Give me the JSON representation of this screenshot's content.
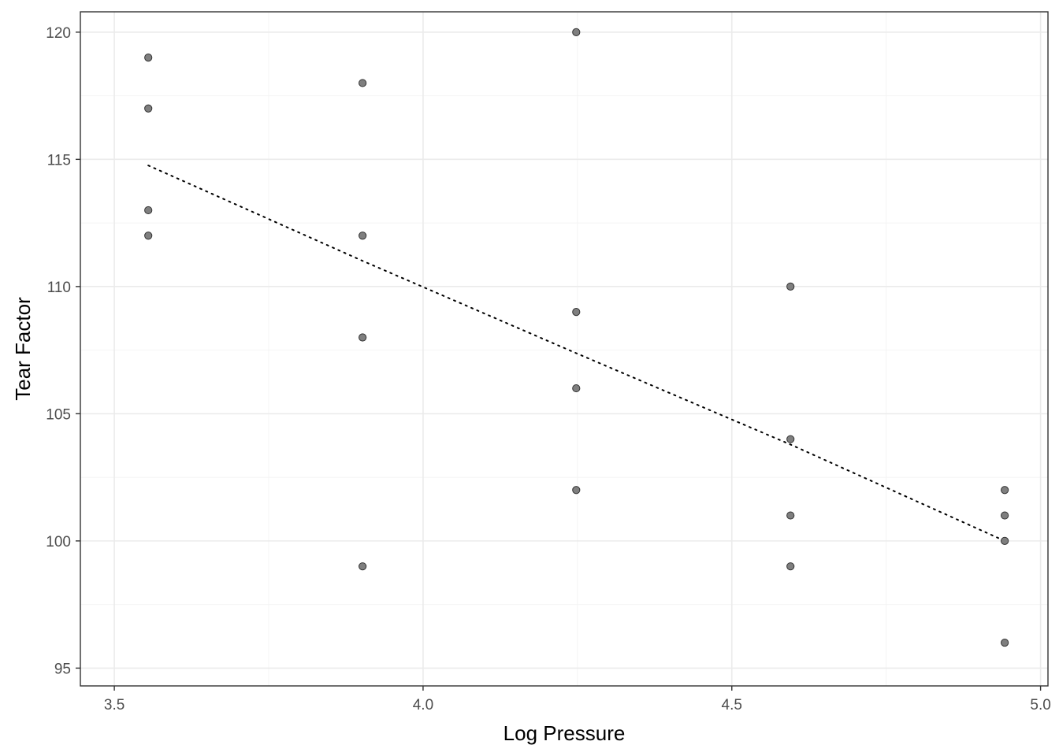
{
  "chart_data": {
    "type": "scatter",
    "title": "",
    "xlabel": "Log Pressure",
    "ylabel": "Tear Factor",
    "xlim": [
      3.445,
      5.012
    ],
    "ylim": [
      94.3,
      120.8
    ],
    "x_ticks": [
      3.5,
      4.0,
      4.5,
      5.0
    ],
    "x_tick_labels": [
      "3.5",
      "4.0",
      "4.5",
      "5.0"
    ],
    "y_ticks": [
      95,
      100,
      105,
      110,
      115,
      120
    ],
    "y_tick_labels": [
      "95",
      "100",
      "105",
      "110",
      "115",
      "120"
    ],
    "grid": true,
    "legend": "none",
    "points": [
      {
        "x": 3.555,
        "y": 119
      },
      {
        "x": 3.555,
        "y": 117
      },
      {
        "x": 3.555,
        "y": 113
      },
      {
        "x": 3.555,
        "y": 112
      },
      {
        "x": 3.902,
        "y": 118
      },
      {
        "x": 3.902,
        "y": 112
      },
      {
        "x": 3.902,
        "y": 108
      },
      {
        "x": 3.902,
        "y": 99
      },
      {
        "x": 4.248,
        "y": 120
      },
      {
        "x": 4.248,
        "y": 109
      },
      {
        "x": 4.248,
        "y": 106
      },
      {
        "x": 4.248,
        "y": 102
      },
      {
        "x": 4.595,
        "y": 110
      },
      {
        "x": 4.595,
        "y": 104
      },
      {
        "x": 4.595,
        "y": 101
      },
      {
        "x": 4.595,
        "y": 99
      },
      {
        "x": 4.942,
        "y": 102
      },
      {
        "x": 4.942,
        "y": 101
      },
      {
        "x": 4.942,
        "y": 100
      },
      {
        "x": 4.942,
        "y": 96
      }
    ],
    "trend_line": {
      "style": "dotted",
      "x": [
        3.555,
        3.902,
        4.248,
        4.595,
        4.942
      ],
      "y": [
        114.76,
        111.01,
        107.38,
        103.79,
        100.0
      ]
    },
    "colors": {
      "point_fill": "#7f7f7f",
      "point_stroke": "#333333",
      "grid_major": "#ebebeb",
      "grid_minor": "#f4f4f4",
      "panel_border": "#333333",
      "trend_line": "#000000"
    }
  }
}
